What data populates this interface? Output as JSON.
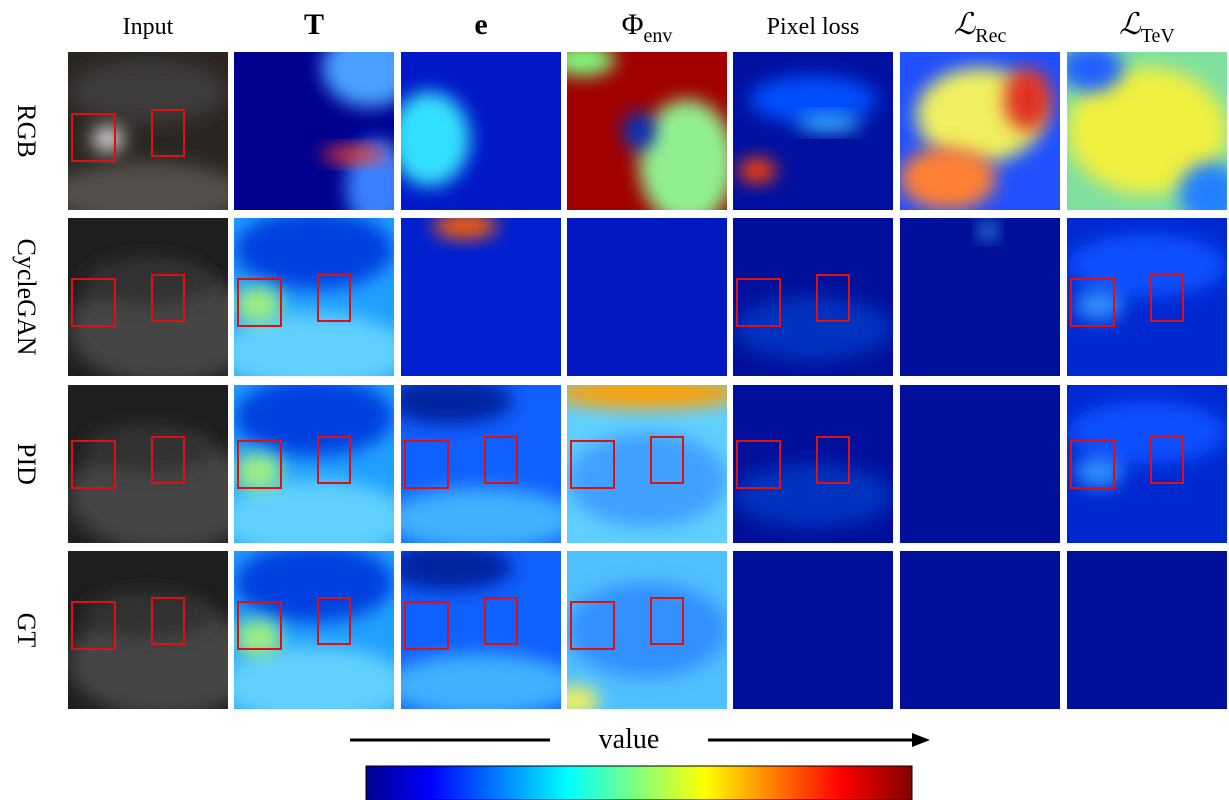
{
  "columns": [
    {
      "label": "Input"
    },
    {
      "label": "T"
    },
    {
      "label": "e"
    },
    {
      "label": "Φ",
      "sub": "env"
    },
    {
      "label": "Pixel loss"
    },
    {
      "label": "ℒ",
      "sub": "Rec"
    },
    {
      "label": "ℒ",
      "sub": "TeV"
    }
  ],
  "rows": [
    "RGB",
    "CycleGAN",
    "PID",
    "GT"
  ],
  "colorbar_label": "value"
}
